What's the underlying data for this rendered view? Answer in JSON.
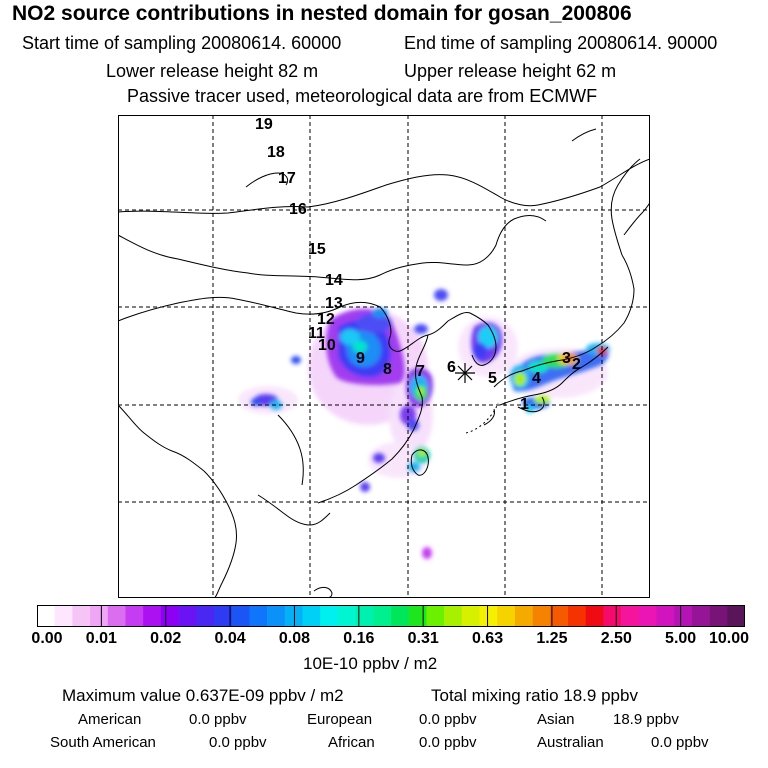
{
  "header": {
    "title": "NO2 source contributions in nested domain for gosan_200806",
    "start_time": "Start time of sampling 20080614. 60000",
    "end_time": "End time of sampling 20080614. 90000",
    "lower_release": "Lower release height   82 m",
    "upper_release": "Upper release height   62 m",
    "tracer_note": "Passive tracer used, meteorological data are from ECMWF"
  },
  "map": {
    "receptor_symbol": "✳",
    "trajectory_labels": [
      "1",
      "2",
      "3",
      "4",
      "5",
      "6",
      "7",
      "8",
      "9",
      "10",
      "11",
      "12",
      "13",
      "14",
      "15",
      "16",
      "17",
      "18",
      "19"
    ]
  },
  "colorbar": {
    "tick_labels": [
      "0.00",
      "0.01",
      "0.02",
      "0.04",
      "0.08",
      "0.16",
      "0.31",
      "0.63",
      "1.25",
      "2.50",
      "5.00",
      "10.00"
    ],
    "units": "10E-10 ppbv / m2",
    "colors": [
      "#ffffff",
      "#ffe6ff",
      "#f7c4f7",
      "#efa7f5",
      "#da6df0",
      "#c53cf2",
      "#ac11f2",
      "#8d00f5",
      "#6a14f5",
      "#4a27f2",
      "#2f3bf2",
      "#1b55f5",
      "#0f75fa",
      "#0a92fa",
      "#05b0f7",
      "#00d0f5",
      "#00f0f0",
      "#00f5d0",
      "#00f0b0",
      "#00f090",
      "#00e65a",
      "#1ee61e",
      "#6bf000",
      "#a8f000",
      "#d7f000",
      "#f5f000",
      "#f5d200",
      "#f5aa00",
      "#f58200",
      "#f55a00",
      "#f53200",
      "#f00a14",
      "#f50a6e",
      "#f5149c",
      "#eb14b4",
      "#d214be",
      "#b414b4",
      "#961496",
      "#781478",
      "#5a145a"
    ]
  },
  "stats": {
    "max_value": "Maximum value  0.637E-09 ppbv / m2",
    "total_mixing": "Total mixing ratio       18.9 ppbv",
    "american_label": "American",
    "american_value": "0.0 ppbv",
    "european_label": "European",
    "european_value": "0.0 ppbv",
    "asian_label": "Asian",
    "asian_value": "18.9 ppbv",
    "south_american_label": "South American",
    "south_american_value": "0.0 ppbv",
    "african_label": "African",
    "african_value": "0.0 ppbv",
    "australian_label": "Australian",
    "australian_value": "0.0 ppbv"
  }
}
